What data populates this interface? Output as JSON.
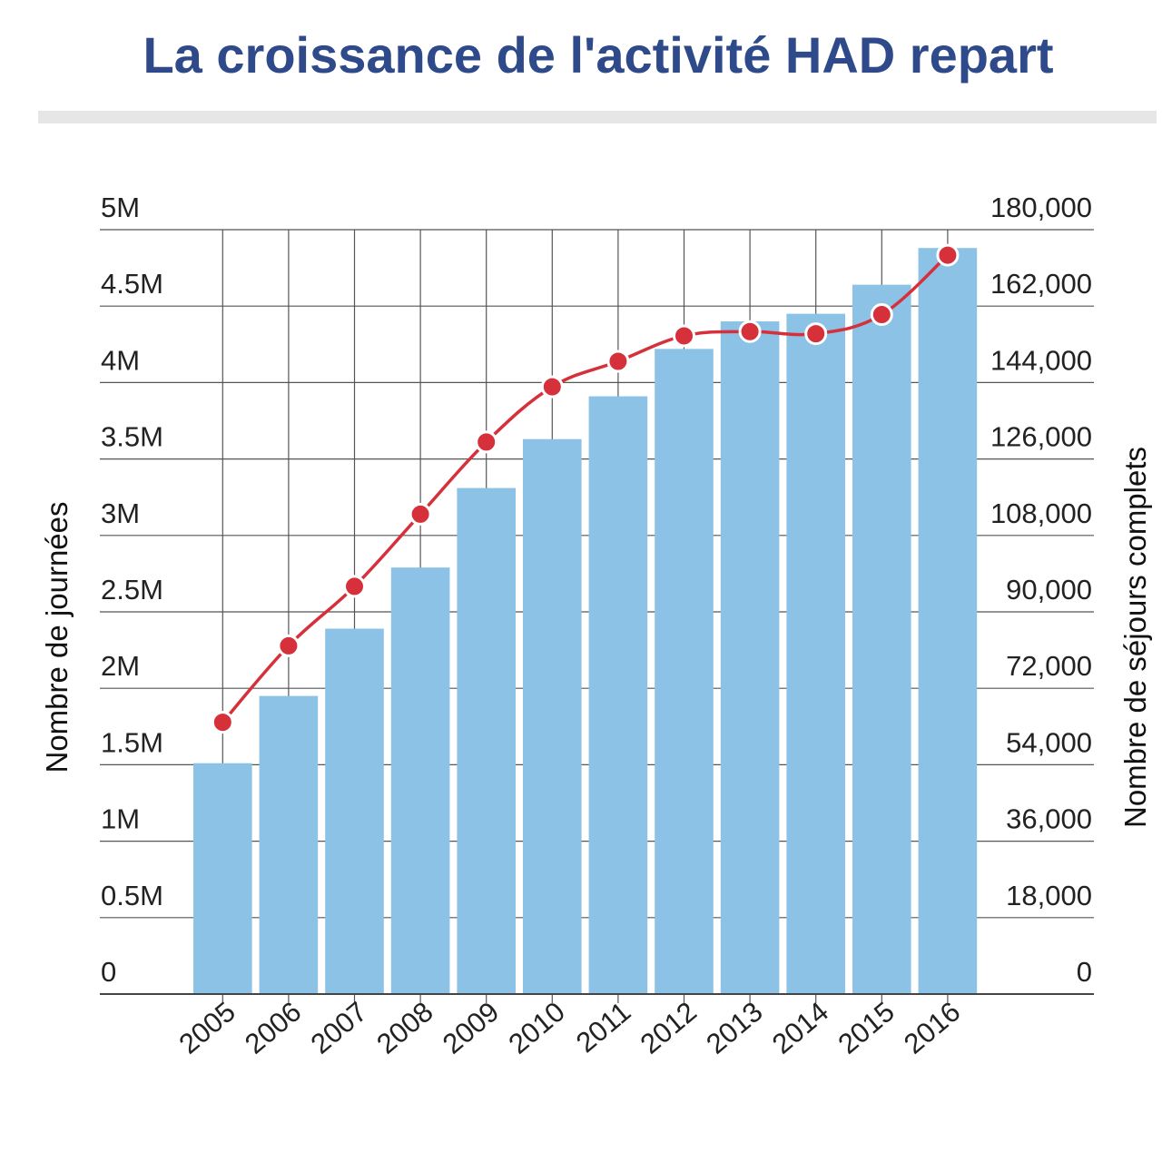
{
  "title": "La croissance de l'activité HAD repart",
  "colors": {
    "title": "#2f4a8a",
    "bar": "#8bc2e6",
    "line": "#d6303a",
    "grid": "#555555"
  },
  "chart_data": {
    "type": "bar",
    "title": "La croissance de l'activité HAD repart",
    "categories": [
      "2005",
      "2006",
      "2007",
      "2008",
      "2009",
      "2010",
      "2011",
      "2012",
      "2013",
      "2014",
      "2015",
      "2016"
    ],
    "series": [
      {
        "type": "bar",
        "axis": "left",
        "values": [
          1510000,
          1950000,
          2390000,
          2790000,
          3310000,
          3630000,
          3910000,
          4220000,
          4400000,
          4450000,
          4640000,
          4880000
        ]
      },
      {
        "type": "line",
        "axis": "right",
        "values": [
          64000,
          82000,
          96000,
          113000,
          130000,
          143000,
          149000,
          155000,
          156000,
          155500,
          160000,
          174000
        ]
      }
    ],
    "ylabel_left": "Nombre de journées",
    "ylabel_right": "Nombre de séjours complets",
    "ylim_left": [
      0,
      5000000
    ],
    "ylim_right": [
      0,
      180000
    ],
    "y_ticks_left": [
      "0",
      "0.5M",
      "1M",
      "1.5M",
      "2M",
      "2.5M",
      "3M",
      "3.5M",
      "4M",
      "4.5M",
      "5M"
    ],
    "y_ticks_right": [
      "0",
      "18,000",
      "36,000",
      "54,000",
      "72,000",
      "90,000",
      "108,000",
      "126,000",
      "144,000",
      "162,000",
      "180,000"
    ],
    "grid": true,
    "legend": "none"
  }
}
